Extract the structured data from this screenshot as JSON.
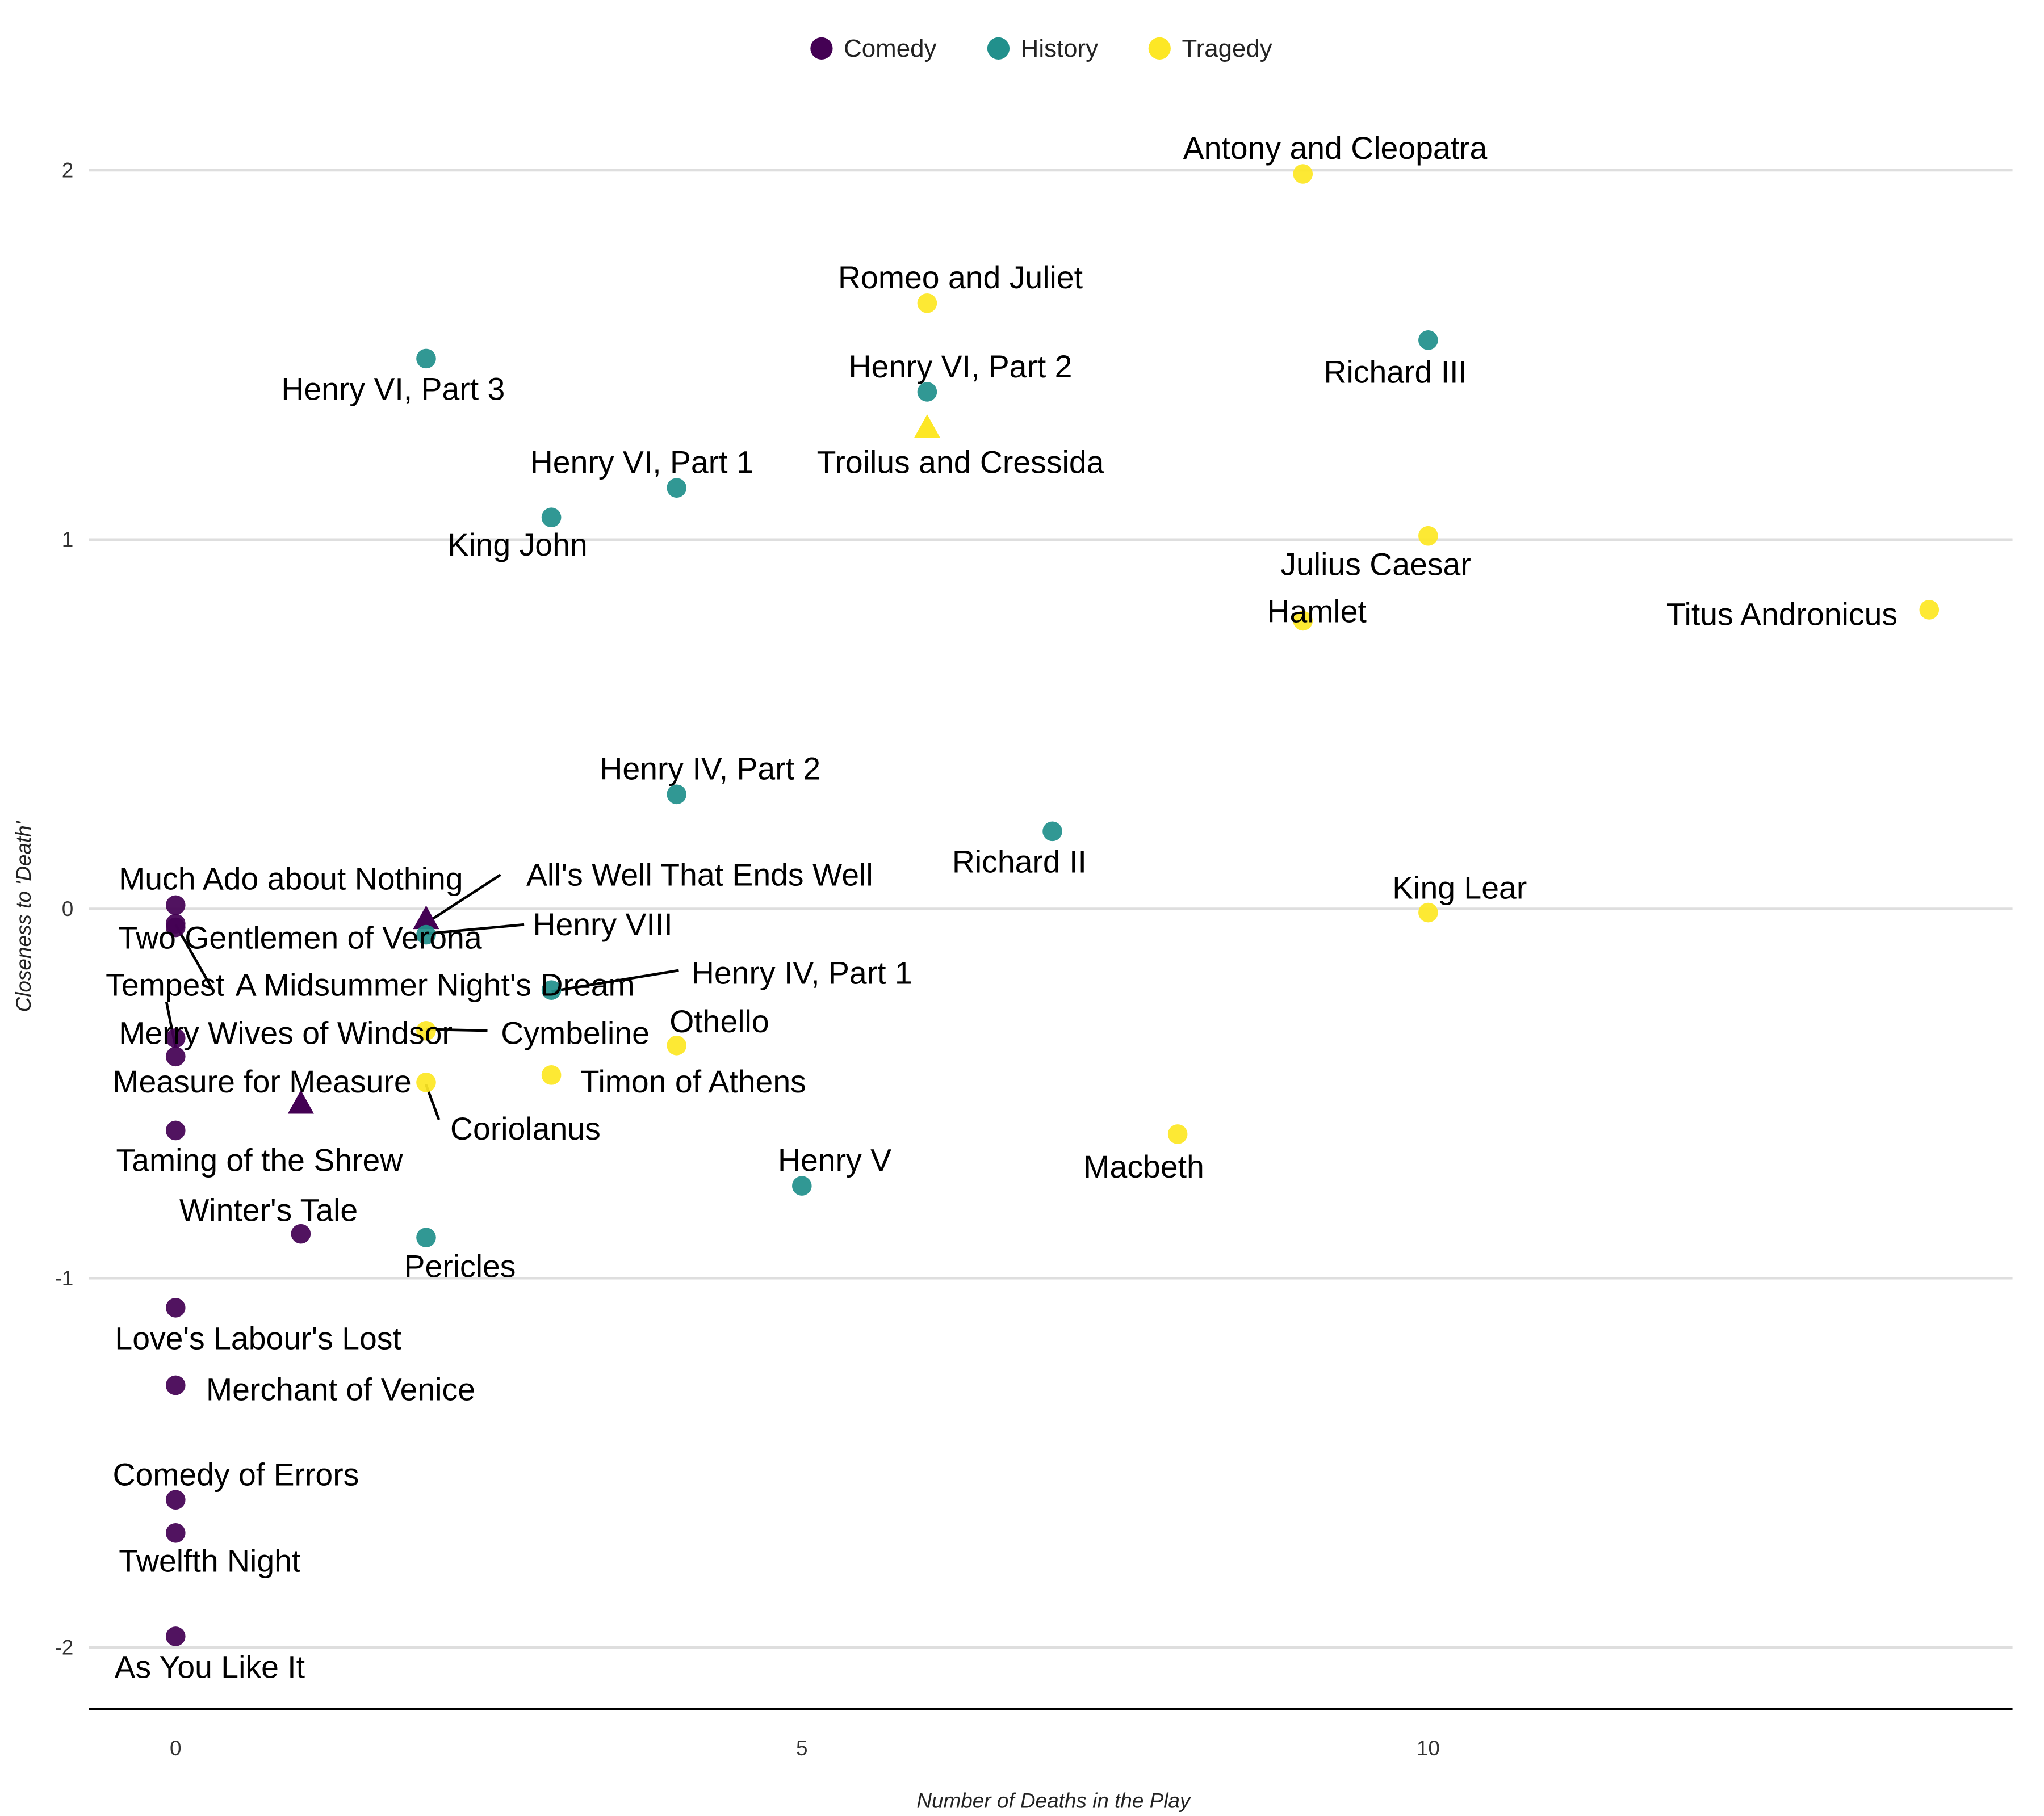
{
  "chart_data": {
    "type": "scatter",
    "xlabel": "Number of Deaths in the Play",
    "ylabel": "Closeness to 'Death'",
    "xlim": [
      -0.7,
      14.6
    ],
    "ylim": [
      -2.2,
      2.3
    ],
    "x_ticks": [
      "0",
      "5",
      "10"
    ],
    "y_ticks": [
      "-2",
      "-1",
      "0",
      "1",
      "2"
    ],
    "grid": "horizontal major lines",
    "legend_position": "top",
    "legend": [
      {
        "name": "Comedy",
        "color": "#440154"
      },
      {
        "name": "History",
        "color": "#21908C"
      },
      {
        "name": "Tragedy",
        "color": "#FDE725"
      }
    ],
    "points": [
      {
        "name": "Antony and Cleopatra",
        "group": "Tragedy",
        "x": 9,
        "y": 1.99,
        "shape": "circle"
      },
      {
        "name": "Romeo and Juliet",
        "group": "Tragedy",
        "x": 6,
        "y": 1.64,
        "shape": "circle"
      },
      {
        "name": "Richard III",
        "group": "History",
        "x": 10,
        "y": 1.54,
        "shape": "circle"
      },
      {
        "name": "Henry VI, Part 3",
        "group": "History",
        "x": 2,
        "y": 1.49,
        "shape": "circle"
      },
      {
        "name": "Henry VI, Part 2",
        "group": "History",
        "x": 6,
        "y": 1.4,
        "shape": "circle"
      },
      {
        "name": "Troilus and Cressida",
        "group": "Tragedy",
        "x": 6,
        "y": 1.3,
        "shape": "triangle"
      },
      {
        "name": "Henry VI, Part 1",
        "group": "History",
        "x": 4,
        "y": 1.14,
        "shape": "circle"
      },
      {
        "name": "King John",
        "group": "History",
        "x": 3,
        "y": 1.06,
        "shape": "circle"
      },
      {
        "name": "Julius Caesar",
        "group": "Tragedy",
        "x": 10,
        "y": 1.01,
        "shape": "circle"
      },
      {
        "name": "Hamlet",
        "group": "Tragedy",
        "x": 9,
        "y": 0.78,
        "shape": "circle"
      },
      {
        "name": "Titus Andronicus",
        "group": "Tragedy",
        "x": 14,
        "y": 0.81,
        "shape": "circle"
      },
      {
        "name": "Henry IV, Part 2",
        "group": "History",
        "x": 4,
        "y": 0.31,
        "shape": "circle"
      },
      {
        "name": "Richard II",
        "group": "History",
        "x": 7,
        "y": 0.21,
        "shape": "circle"
      },
      {
        "name": "Much Ado about Nothing",
        "group": "Comedy",
        "x": 0,
        "y": 0.01,
        "shape": "circle"
      },
      {
        "name": "King Lear",
        "group": "Tragedy",
        "x": 10,
        "y": -0.01,
        "shape": "circle"
      },
      {
        "name": "All's Well That Ends Well",
        "group": "Comedy",
        "x": 2,
        "y": -0.03,
        "shape": "triangle"
      },
      {
        "name": "Henry VIII",
        "group": "History",
        "x": 2,
        "y": -0.07,
        "shape": "circle"
      },
      {
        "name": "Two Gentlemen of Verona",
        "group": "Comedy",
        "x": 0,
        "y": -0.04,
        "shape": "circle"
      },
      {
        "name": "Henry IV, Part 1",
        "group": "History",
        "x": 3,
        "y": -0.22,
        "shape": "circle"
      },
      {
        "name": "A Midsummer Night's Dream",
        "group": "Comedy",
        "x": 0,
        "y": -0.05,
        "shape": "circle"
      },
      {
        "name": "Tempest",
        "group": "Comedy",
        "x": 0,
        "y": -0.35,
        "shape": "circle"
      },
      {
        "name": "Merry Wives of Windsor",
        "group": "Comedy",
        "x": 0,
        "y": -0.4,
        "shape": "circle"
      },
      {
        "name": "Cymbeline",
        "group": "Tragedy",
        "x": 2,
        "y": -0.33,
        "shape": "circle"
      },
      {
        "name": "Othello",
        "group": "Tragedy",
        "x": 4,
        "y": -0.37,
        "shape": "circle"
      },
      {
        "name": "Timon of Athens",
        "group": "Tragedy",
        "x": 3,
        "y": -0.45,
        "shape": "circle"
      },
      {
        "name": "Measure for Measure",
        "group": "Comedy",
        "x": 1,
        "y": -0.53,
        "shape": "triangle"
      },
      {
        "name": "Coriolanus",
        "group": "Tragedy",
        "x": 2,
        "y": -0.47,
        "shape": "circle"
      },
      {
        "name": "Taming of the Shrew",
        "group": "Comedy",
        "x": 0,
        "y": -0.6,
        "shape": "circle"
      },
      {
        "name": "Henry V",
        "group": "History",
        "x": 5,
        "y": -0.75,
        "shape": "circle"
      },
      {
        "name": "Macbeth",
        "group": "Tragedy",
        "x": 8,
        "y": -0.61,
        "shape": "circle"
      },
      {
        "name": "Winter's Tale",
        "group": "Comedy",
        "x": 1,
        "y": -0.88,
        "shape": "circle"
      },
      {
        "name": "Pericles",
        "group": "History",
        "x": 2,
        "y": -0.89,
        "shape": "circle"
      },
      {
        "name": "Love's Labour's Lost",
        "group": "Comedy",
        "x": 0,
        "y": -1.08,
        "shape": "circle"
      },
      {
        "name": "Merchant of Venice",
        "group": "Comedy",
        "x": 0,
        "y": -1.29,
        "shape": "circle"
      },
      {
        "name": "Comedy of Errors",
        "group": "Comedy",
        "x": 0,
        "y": -1.6,
        "shape": "circle"
      },
      {
        "name": "Twelfth Night",
        "group": "Comedy",
        "x": 0,
        "y": -1.69,
        "shape": "circle"
      },
      {
        "name": "As You Like It",
        "group": "Comedy",
        "x": 0,
        "y": -1.97,
        "shape": "circle"
      }
    ]
  }
}
